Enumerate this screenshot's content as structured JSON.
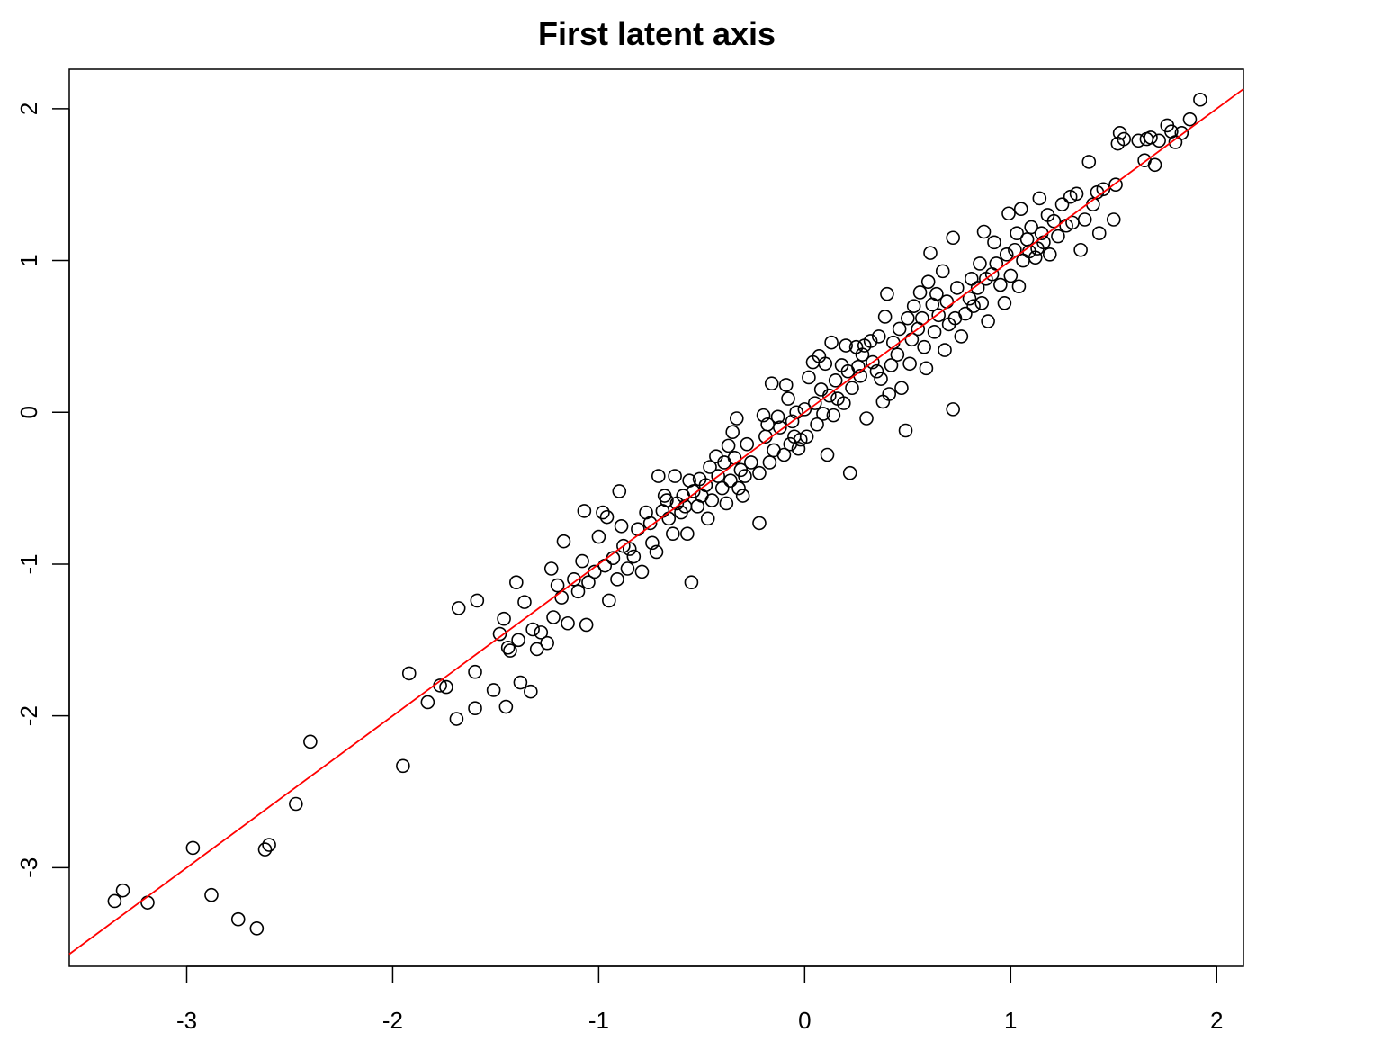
{
  "chart_data": {
    "type": "scatter",
    "title": "First latent axis",
    "xlabel": "",
    "ylabel": "",
    "xlim": [
      -3.57,
      2.13
    ],
    "ylim": [
      -3.65,
      2.26
    ],
    "x_ticks": [
      -3,
      -2,
      -1,
      0,
      1,
      2
    ],
    "y_ticks": [
      -3,
      -2,
      -1,
      0,
      1,
      2
    ],
    "x_tick_labels": [
      "-3",
      "-2",
      "-1",
      "0",
      "1",
      "2"
    ],
    "y_tick_labels": [
      "-3",
      "-2",
      "-1",
      "0",
      "1",
      "2"
    ],
    "grid": false,
    "legend": "none",
    "colors": {
      "points": "#000000",
      "reference_line": "#ff0000",
      "axes": "#000000",
      "background": "#ffffff"
    },
    "reference_line": {
      "slope": 1,
      "intercept": 0,
      "color": "#ff0000",
      "label": ""
    },
    "points": [
      [
        -3.35,
        -3.22
      ],
      [
        -3.31,
        -3.15
      ],
      [
        -3.19,
        -3.23
      ],
      [
        -2.97,
        -2.87
      ],
      [
        -2.88,
        -3.18
      ],
      [
        -2.75,
        -3.34
      ],
      [
        -2.66,
        -3.4
      ],
      [
        -2.62,
        -2.88
      ],
      [
        -2.6,
        -2.85
      ],
      [
        -2.47,
        -2.58
      ],
      [
        -2.4,
        -2.17
      ],
      [
        -1.95,
        -2.33
      ],
      [
        -1.92,
        -1.72
      ],
      [
        -1.83,
        -1.91
      ],
      [
        -1.77,
        -1.8
      ],
      [
        -1.74,
        -1.81
      ],
      [
        -1.69,
        -2.02
      ],
      [
        -1.68,
        -1.29
      ],
      [
        -1.6,
        -1.95
      ],
      [
        -1.6,
        -1.71
      ],
      [
        -1.59,
        -1.24
      ],
      [
        -1.51,
        -1.83
      ],
      [
        -1.48,
        -1.46
      ],
      [
        -1.46,
        -1.36
      ],
      [
        -1.45,
        -1.94
      ],
      [
        -1.44,
        -1.55
      ],
      [
        -1.43,
        -1.57
      ],
      [
        -1.4,
        -1.12
      ],
      [
        -1.39,
        -1.5
      ],
      [
        -1.38,
        -1.78
      ],
      [
        -1.36,
        -1.25
      ],
      [
        -1.33,
        -1.84
      ],
      [
        -1.32,
        -1.43
      ],
      [
        -1.3,
        -1.56
      ],
      [
        -1.28,
        -1.45
      ],
      [
        -1.25,
        -1.52
      ],
      [
        -1.23,
        -1.03
      ],
      [
        -1.22,
        -1.35
      ],
      [
        -1.2,
        -1.14
      ],
      [
        -1.18,
        -1.22
      ],
      [
        -1.17,
        -0.85
      ],
      [
        -1.15,
        -1.39
      ],
      [
        -1.12,
        -1.1
      ],
      [
        -1.1,
        -1.18
      ],
      [
        -1.08,
        -0.98
      ],
      [
        -1.07,
        -0.65
      ],
      [
        -1.06,
        -1.4
      ],
      [
        -1.05,
        -1.12
      ],
      [
        -1.02,
        -1.05
      ],
      [
        -1.0,
        -0.82
      ],
      [
        -0.98,
        -0.66
      ],
      [
        -0.97,
        -1.01
      ],
      [
        -0.96,
        -0.69
      ],
      [
        -0.95,
        -1.24
      ],
      [
        -0.93,
        -0.96
      ],
      [
        -0.91,
        -1.1
      ],
      [
        -0.9,
        -0.52
      ],
      [
        -0.89,
        -0.75
      ],
      [
        -0.88,
        -0.88
      ],
      [
        -0.86,
        -1.03
      ],
      [
        -0.85,
        -0.9
      ],
      [
        -0.83,
        -0.95
      ],
      [
        -0.81,
        -0.77
      ],
      [
        -0.79,
        -1.05
      ],
      [
        -0.77,
        -0.66
      ],
      [
        -0.75,
        -0.73
      ],
      [
        -0.74,
        -0.86
      ],
      [
        -0.72,
        -0.92
      ],
      [
        -0.71,
        -0.42
      ],
      [
        -0.69,
        -0.65
      ],
      [
        -0.68,
        -0.55
      ],
      [
        -0.67,
        -0.58
      ],
      [
        -0.66,
        -0.7
      ],
      [
        -0.64,
        -0.8
      ],
      [
        -0.63,
        -0.42
      ],
      [
        -0.62,
        -0.6
      ],
      [
        -0.6,
        -0.66
      ],
      [
        -0.59,
        -0.55
      ],
      [
        -0.58,
        -0.62
      ],
      [
        -0.57,
        -0.8
      ],
      [
        -0.56,
        -0.45
      ],
      [
        -0.55,
        -1.12
      ],
      [
        -0.54,
        -0.52
      ],
      [
        -0.52,
        -0.62
      ],
      [
        -0.51,
        -0.44
      ],
      [
        -0.5,
        -0.55
      ],
      [
        -0.48,
        -0.48
      ],
      [
        -0.47,
        -0.7
      ],
      [
        -0.46,
        -0.36
      ],
      [
        -0.45,
        -0.58
      ],
      [
        -0.43,
        -0.29
      ],
      [
        -0.42,
        -0.42
      ],
      [
        -0.4,
        -0.5
      ],
      [
        -0.39,
        -0.33
      ],
      [
        -0.38,
        -0.6
      ],
      [
        -0.37,
        -0.22
      ],
      [
        -0.36,
        -0.45
      ],
      [
        -0.35,
        -0.13
      ],
      [
        -0.34,
        -0.3
      ],
      [
        -0.33,
        -0.04
      ],
      [
        -0.32,
        -0.5
      ],
      [
        -0.31,
        -0.38
      ],
      [
        -0.3,
        -0.55
      ],
      [
        -0.29,
        -0.42
      ],
      [
        -0.28,
        -0.21
      ],
      [
        -0.26,
        -0.33
      ],
      [
        -0.22,
        -0.4
      ],
      [
        -0.22,
        -0.73
      ],
      [
        -0.2,
        -0.02
      ],
      [
        -0.19,
        -0.16
      ],
      [
        -0.18,
        -0.08
      ],
      [
        -0.17,
        -0.33
      ],
      [
        -0.16,
        0.19
      ],
      [
        -0.15,
        -0.25
      ],
      [
        -0.13,
        -0.03
      ],
      [
        -0.12,
        -0.1
      ],
      [
        -0.1,
        -0.28
      ],
      [
        -0.09,
        0.18
      ],
      [
        -0.08,
        0.09
      ],
      [
        -0.07,
        -0.21
      ],
      [
        -0.06,
        -0.06
      ],
      [
        -0.05,
        -0.16
      ],
      [
        -0.04,
        0.0
      ],
      [
        -0.03,
        -0.24
      ],
      [
        -0.02,
        -0.18
      ],
      [
        0.0,
        0.02
      ],
      [
        0.01,
        -0.16
      ],
      [
        0.02,
        0.23
      ],
      [
        0.04,
        0.33
      ],
      [
        0.05,
        0.06
      ],
      [
        0.06,
        -0.08
      ],
      [
        0.07,
        0.37
      ],
      [
        0.08,
        0.15
      ],
      [
        0.09,
        -0.01
      ],
      [
        0.1,
        0.32
      ],
      [
        0.11,
        -0.28
      ],
      [
        0.12,
        0.11
      ],
      [
        0.13,
        0.46
      ],
      [
        0.14,
        -0.02
      ],
      [
        0.15,
        0.21
      ],
      [
        0.16,
        0.09
      ],
      [
        0.18,
        0.31
      ],
      [
        0.19,
        0.06
      ],
      [
        0.2,
        0.44
      ],
      [
        0.21,
        0.27
      ],
      [
        0.22,
        -0.4
      ],
      [
        0.23,
        0.16
      ],
      [
        0.25,
        0.43
      ],
      [
        0.26,
        0.3
      ],
      [
        0.27,
        0.24
      ],
      [
        0.28,
        0.38
      ],
      [
        0.29,
        0.44
      ],
      [
        0.3,
        -0.04
      ],
      [
        0.32,
        0.47
      ],
      [
        0.33,
        0.33
      ],
      [
        0.35,
        0.27
      ],
      [
        0.36,
        0.5
      ],
      [
        0.37,
        0.22
      ],
      [
        0.38,
        0.07
      ],
      [
        0.39,
        0.63
      ],
      [
        0.4,
        0.78
      ],
      [
        0.41,
        0.12
      ],
      [
        0.42,
        0.31
      ],
      [
        0.43,
        0.46
      ],
      [
        0.45,
        0.38
      ],
      [
        0.46,
        0.55
      ],
      [
        0.47,
        0.16
      ],
      [
        0.49,
        -0.12
      ],
      [
        0.5,
        0.62
      ],
      [
        0.51,
        0.32
      ],
      [
        0.52,
        0.48
      ],
      [
        0.53,
        0.7
      ],
      [
        0.55,
        0.55
      ],
      [
        0.56,
        0.79
      ],
      [
        0.57,
        0.62
      ],
      [
        0.58,
        0.43
      ],
      [
        0.59,
        0.29
      ],
      [
        0.6,
        0.86
      ],
      [
        0.61,
        1.05
      ],
      [
        0.62,
        0.71
      ],
      [
        0.63,
        0.53
      ],
      [
        0.64,
        0.78
      ],
      [
        0.65,
        0.64
      ],
      [
        0.67,
        0.93
      ],
      [
        0.68,
        0.41
      ],
      [
        0.69,
        0.73
      ],
      [
        0.7,
        0.58
      ],
      [
        0.72,
        0.02
      ],
      [
        0.72,
        1.15
      ],
      [
        0.73,
        0.62
      ],
      [
        0.74,
        0.82
      ],
      [
        0.76,
        0.5
      ],
      [
        0.78,
        0.65
      ],
      [
        0.8,
        0.75
      ],
      [
        0.81,
        0.88
      ],
      [
        0.82,
        0.7
      ],
      [
        0.84,
        0.82
      ],
      [
        0.85,
        0.98
      ],
      [
        0.86,
        0.72
      ],
      [
        0.87,
        1.19
      ],
      [
        0.88,
        0.88
      ],
      [
        0.89,
        0.6
      ],
      [
        0.91,
        0.91
      ],
      [
        0.92,
        1.12
      ],
      [
        0.93,
        0.98
      ],
      [
        0.95,
        0.84
      ],
      [
        0.97,
        0.72
      ],
      [
        0.98,
        1.04
      ],
      [
        0.99,
        1.31
      ],
      [
        1.0,
        0.9
      ],
      [
        1.02,
        1.07
      ],
      [
        1.03,
        1.18
      ],
      [
        1.04,
        0.83
      ],
      [
        1.05,
        1.34
      ],
      [
        1.06,
        1.0
      ],
      [
        1.08,
        1.14
      ],
      [
        1.09,
        1.06
      ],
      [
        1.1,
        1.22
      ],
      [
        1.12,
        1.02
      ],
      [
        1.13,
        1.08
      ],
      [
        1.14,
        1.41
      ],
      [
        1.15,
        1.18
      ],
      [
        1.16,
        1.12
      ],
      [
        1.18,
        1.3
      ],
      [
        1.19,
        1.04
      ],
      [
        1.21,
        1.26
      ],
      [
        1.23,
        1.16
      ],
      [
        1.25,
        1.37
      ],
      [
        1.27,
        1.23
      ],
      [
        1.29,
        1.42
      ],
      [
        1.3,
        1.25
      ],
      [
        1.32,
        1.44
      ],
      [
        1.34,
        1.07
      ],
      [
        1.36,
        1.27
      ],
      [
        1.38,
        1.65
      ],
      [
        1.4,
        1.37
      ],
      [
        1.42,
        1.45
      ],
      [
        1.43,
        1.18
      ],
      [
        1.45,
        1.47
      ],
      [
        1.5,
        1.27
      ],
      [
        1.51,
        1.5
      ],
      [
        1.52,
        1.77
      ],
      [
        1.53,
        1.84
      ],
      [
        1.55,
        1.8
      ],
      [
        1.62,
        1.79
      ],
      [
        1.65,
        1.66
      ],
      [
        1.66,
        1.8
      ],
      [
        1.68,
        1.81
      ],
      [
        1.7,
        1.63
      ],
      [
        1.72,
        1.79
      ],
      [
        1.76,
        1.89
      ],
      [
        1.78,
        1.85
      ],
      [
        1.8,
        1.78
      ],
      [
        1.83,
        1.84
      ],
      [
        1.87,
        1.93
      ],
      [
        1.92,
        2.06
      ]
    ]
  }
}
